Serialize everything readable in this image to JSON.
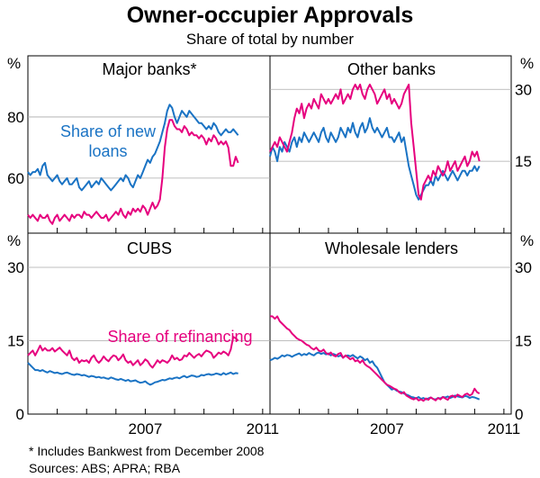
{
  "title": "Owner-occupier Approvals",
  "subtitle": "Share of total by number",
  "footnote": "*   Includes Bankwest from December 2008",
  "sources": "Sources: ABS; APRA; RBA",
  "colors": {
    "new_loans": "#1a73c4",
    "refinancing": "#e6007e",
    "axis": "#000000",
    "grid": "#aaaaaa"
  },
  "chart_data": [
    {
      "type": "line",
      "panel": "Major banks*",
      "position": "top-left",
      "ylabel": "%",
      "yticks": [
        60,
        80
      ],
      "ylim": [
        42,
        100
      ],
      "xlim": [
        2003.0,
        2011.25
      ],
      "xticks": [
        2007,
        2011
      ],
      "annotations": [
        {
          "text": "Share of new loans",
          "series": "new"
        }
      ],
      "series": [
        {
          "name": "Share of new loans",
          "key": "new",
          "start": 2003.0,
          "step": 0.0833,
          "values": [
            62,
            61,
            62,
            62,
            63,
            61,
            64,
            65,
            61,
            60,
            59,
            60,
            61,
            59,
            58,
            59,
            60,
            58,
            58,
            59,
            60,
            57,
            56,
            57,
            58,
            59,
            57,
            58,
            59,
            58,
            60,
            59,
            58,
            57,
            56,
            57,
            58,
            59,
            60,
            59,
            61,
            60,
            58,
            57,
            59,
            61,
            60,
            62,
            64,
            66,
            65,
            67,
            68,
            70,
            72,
            75,
            78,
            82,
            84,
            83,
            80,
            78,
            80,
            82,
            81,
            80,
            82,
            81,
            80,
            79,
            78,
            78,
            77,
            76,
            77,
            76,
            78,
            77,
            75,
            74,
            75,
            76,
            75,
            75,
            76,
            75,
            74
          ]
        },
        {
          "name": "Share of refinancing",
          "key": "refi",
          "start": 2003.0,
          "step": 0.0833,
          "values": [
            48,
            47,
            48,
            47,
            46,
            48,
            47,
            47,
            48,
            46,
            45,
            47,
            48,
            46,
            47,
            48,
            47,
            46,
            48,
            47,
            48,
            48,
            47,
            49,
            48,
            48,
            47,
            48,
            49,
            48,
            47,
            47,
            48,
            46,
            47,
            48,
            49,
            48,
            50,
            48,
            47,
            49,
            48,
            50,
            49,
            50,
            49,
            51,
            50,
            48,
            50,
            52,
            50,
            51,
            53,
            60,
            70,
            76,
            79,
            79,
            77,
            76,
            76,
            75,
            77,
            76,
            74,
            75,
            74,
            74,
            73,
            74,
            73,
            71,
            73,
            72,
            74,
            73,
            71,
            72,
            71,
            72,
            70,
            64,
            64,
            67,
            65
          ]
        }
      ]
    },
    {
      "type": "line",
      "panel": "Other banks",
      "position": "top-right",
      "ylabel": "%",
      "yticks": [
        15,
        30
      ],
      "ylim": [
        0,
        37
      ],
      "xlim": [
        2003.0,
        2011.25
      ],
      "xticks": [
        2007,
        2011
      ],
      "series": [
        {
          "name": "Share of new loans",
          "key": "new",
          "start": 2003.0,
          "step": 0.0833,
          "values": [
            16,
            18,
            17,
            15,
            18,
            17,
            19,
            18,
            17,
            19,
            20,
            18,
            20,
            19,
            21,
            20,
            19,
            20,
            21,
            20,
            19,
            21,
            22,
            20,
            19,
            21,
            20,
            19,
            20,
            22,
            21,
            20,
            22,
            21,
            23,
            21,
            20,
            22,
            23,
            21,
            22,
            24,
            22,
            21,
            22,
            21,
            20,
            21,
            22,
            20,
            20,
            19,
            20,
            21,
            19,
            20,
            17,
            14,
            12,
            10,
            8,
            7,
            8,
            9,
            10,
            10,
            11,
            10,
            12,
            11,
            12,
            13,
            12,
            11,
            12,
            13,
            12,
            11,
            12,
            13,
            13,
            12,
            13,
            13,
            14,
            13,
            14
          ]
        },
        {
          "name": "Share of refinancing",
          "key": "refi",
          "start": 2003.0,
          "step": 0.0833,
          "values": [
            17,
            18,
            19,
            18,
            20,
            19,
            18,
            17,
            19,
            21,
            24,
            26,
            25,
            27,
            24,
            26,
            27,
            26,
            28,
            27,
            26,
            29,
            28,
            27,
            28,
            27,
            28,
            29,
            28,
            30,
            27,
            28,
            29,
            28,
            30,
            31,
            30,
            31,
            29,
            28,
            30,
            31,
            30,
            29,
            27,
            28,
            29,
            30,
            28,
            29,
            27,
            28,
            27,
            26,
            27,
            29,
            30,
            31,
            23,
            18,
            13,
            8,
            7,
            10,
            11,
            12,
            11,
            13,
            12,
            14,
            13,
            12,
            13,
            15,
            13,
            14,
            15,
            13,
            14,
            15,
            16,
            14,
            15,
            17,
            16,
            17,
            15
          ]
        }
      ]
    },
    {
      "type": "line",
      "panel": "CUBS",
      "position": "bottom-left",
      "ylabel": "%",
      "yticks": [
        0,
        15,
        30
      ],
      "ylim": [
        0,
        37
      ],
      "xlim": [
        2003.0,
        2011.25
      ],
      "xticks": [
        2007,
        2011
      ],
      "annotations": [
        {
          "text": "Share of refinancing",
          "series": "refi"
        }
      ],
      "series": [
        {
          "name": "Share of new loans",
          "key": "new",
          "start": 2003.0,
          "step": 0.0833,
          "values": [
            10.5,
            10,
            9.5,
            9,
            9,
            8.8,
            9,
            8.7,
            8.5,
            8.8,
            8.6,
            8.4,
            8.5,
            8.3,
            8.2,
            8.4,
            8.5,
            8.3,
            8.1,
            8,
            8.2,
            8.1,
            7.9,
            8,
            7.8,
            7.6,
            7.8,
            7.7,
            7.5,
            7.6,
            7.4,
            7.5,
            7.3,
            7.2,
            7.5,
            7.3,
            7.1,
            7,
            7.2,
            7,
            6.8,
            7,
            6.7,
            6.8,
            6.9,
            6.6,
            6.4,
            6.5,
            6.7,
            6.3,
            6,
            6.2,
            6.5,
            6.6,
            6.8,
            7,
            6.9,
            7.1,
            7.3,
            7.2,
            7.4,
            7.5,
            7.3,
            7.6,
            7.8,
            7.5,
            7.7,
            7.9,
            7.8,
            7.6,
            7.7,
            8,
            7.9,
            8.1,
            8.2,
            8,
            8.1,
            8.3,
            8.2,
            8,
            8.4,
            8.1,
            8.3,
            8.5,
            8.2,
            8.4,
            8.3
          ]
        },
        {
          "name": "Share of refinancing",
          "key": "refi",
          "start": 2003.0,
          "step": 0.0833,
          "values": [
            12,
            12.5,
            13,
            12,
            13,
            14,
            13,
            13.5,
            13,
            13,
            13.5,
            12.8,
            13.2,
            13.6,
            13,
            12.5,
            12,
            13,
            11.5,
            11,
            11.5,
            10.5,
            11,
            10.8,
            11,
            10.5,
            11.5,
            12,
            11,
            10.5,
            11,
            11.8,
            11.2,
            10.8,
            11.5,
            12,
            11.8,
            11,
            11.5,
            12.2,
            11,
            10.5,
            10.8,
            10,
            10.5,
            11,
            10,
            10.5,
            11.2,
            10.8,
            10,
            9.5,
            10.2,
            11,
            10.5,
            11,
            10.8,
            10.5,
            11,
            12,
            11.2,
            11.5,
            11,
            11.2,
            12,
            11.8,
            12.5,
            12,
            11.5,
            12,
            12.3,
            11.8,
            12.5,
            13,
            12.8,
            12.5,
            11.5,
            12,
            12.6,
            12.3,
            12.8,
            12.5,
            12,
            13.2,
            15.8,
            15.5,
            15
          ]
        }
      ]
    },
    {
      "type": "line",
      "panel": "Wholesale lenders",
      "position": "bottom-right",
      "ylabel": "%",
      "yticks": [
        0,
        15,
        30
      ],
      "ylim": [
        0,
        37
      ],
      "xlim": [
        2003.0,
        2011.25
      ],
      "xticks": [
        2007,
        2011
      ],
      "series": [
        {
          "name": "Share of new loans",
          "key": "new",
          "start": 2003.0,
          "step": 0.0833,
          "values": [
            11,
            11.2,
            11.5,
            11.3,
            11.6,
            12,
            11.8,
            12.1,
            12,
            11.7,
            12,
            12.2,
            12.4,
            12,
            12.3,
            12.1,
            12.5,
            12.2,
            12,
            12.4,
            12.6,
            12.3,
            12.5,
            12.2,
            12.4,
            12,
            12.3,
            12.1,
            11.8,
            12,
            11.6,
            11.9,
            12,
            11.8,
            12.1,
            11.7,
            11.4,
            11.8,
            11.5,
            11,
            11.3,
            10.5,
            10.8,
            10,
            9.5,
            8.5,
            7.5,
            6.5,
            6,
            5.5,
            5,
            5.2,
            4.8,
            4.6,
            4.5,
            4.2,
            4,
            3.8,
            3.5,
            3.4,
            3.2,
            3.5,
            3.1,
            3.3,
            3,
            3.2,
            3.4,
            3.1,
            3,
            3.3,
            3.2,
            3.5,
            3.4,
            3.6,
            3.3,
            3.5,
            3.8,
            3.6,
            3.5,
            3.4,
            3.7,
            3.6,
            3.3,
            3.5,
            3.4,
            3.2,
            3
          ]
        },
        {
          "name": "Share of refinancing",
          "key": "refi",
          "start": 2003.0,
          "step": 0.0833,
          "values": [
            20,
            20,
            19.5,
            20,
            19,
            18.5,
            18,
            17.5,
            17.2,
            16.5,
            16,
            15.5,
            15.2,
            15,
            14.6,
            14.2,
            14,
            13.5,
            13.2,
            13.6,
            13,
            12.8,
            13.2,
            12.5,
            12.2,
            12.6,
            12,
            11.8,
            12.3,
            12.5,
            11.5,
            12,
            11.6,
            11.2,
            11.5,
            10.8,
            11,
            10.5,
            11,
            10.2,
            9.8,
            9.5,
            9,
            8.5,
            8,
            7.5,
            7,
            6.5,
            6,
            5.8,
            5.5,
            5.2,
            5,
            4.5,
            4.2,
            4.5,
            3.8,
            3.5,
            3.2,
            3,
            3.3,
            2.8,
            3,
            2.7,
            3.2,
            2.9,
            3.4,
            3.1,
            2.8,
            3.3,
            3,
            3.5,
            3.2,
            2.9,
            3.6,
            3.8,
            3.4,
            4,
            3.7,
            3.5,
            4,
            4.2,
            3.8,
            4.1,
            5.2,
            4.5,
            4.2
          ]
        }
      ]
    }
  ]
}
